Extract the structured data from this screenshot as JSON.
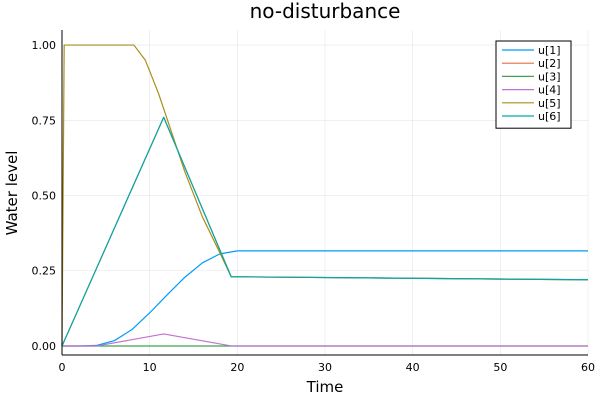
{
  "chart_data": {
    "type": "line",
    "title": "no-disturbance",
    "xlabel": "Time",
    "ylabel": "Water level",
    "xlim": [
      0,
      60
    ],
    "ylim": [
      -0.03,
      1.05
    ],
    "xticks": [
      0,
      10,
      20,
      30,
      40,
      50,
      60
    ],
    "xtick_labels": [
      "0",
      "10",
      "20",
      "30",
      "40",
      "50",
      "60"
    ],
    "yticks": [
      0,
      0.25,
      0.5,
      0.75,
      1.0
    ],
    "ytick_labels": [
      "0.00",
      "0.25",
      "0.50",
      "0.75",
      "1.00"
    ],
    "grid": true,
    "legend_position": "top-right",
    "series": [
      {
        "name": "u[1]",
        "color": "#009AFA",
        "x": [
          0,
          2,
          4,
          6,
          8,
          10,
          12,
          14,
          16,
          18,
          20,
          60
        ],
        "y": [
          0,
          0,
          0.002,
          0.018,
          0.055,
          0.11,
          0.17,
          0.228,
          0.276,
          0.306,
          0.316,
          0.316
        ]
      },
      {
        "name": "u[2]",
        "color": "#E36F47",
        "x": [
          0,
          11.6,
          19.3,
          60
        ],
        "y": [
          0,
          0.76,
          0.23,
          0.22
        ]
      },
      {
        "name": "u[3]",
        "color": "#3EA44E",
        "x": [
          0,
          60
        ],
        "y": [
          0,
          0
        ]
      },
      {
        "name": "u[4]",
        "color": "#C271D2",
        "x": [
          0,
          4,
          11.6,
          19.3,
          60
        ],
        "y": [
          0,
          0,
          0.04,
          0,
          0
        ]
      },
      {
        "name": "u[5]",
        "color": "#AC8D18",
        "x": [
          0,
          0.25,
          8.2,
          9.5,
          11,
          12.5,
          14,
          16,
          18,
          19.3,
          60
        ],
        "y": [
          0,
          1.0,
          1.0,
          0.95,
          0.84,
          0.71,
          0.58,
          0.43,
          0.31,
          0.23,
          0.22
        ]
      },
      {
        "name": "u[6]",
        "color": "#00A9AD",
        "x": [
          0,
          11.6,
          19.3,
          60
        ],
        "y": [
          0,
          0.76,
          0.23,
          0.22
        ]
      }
    ]
  }
}
